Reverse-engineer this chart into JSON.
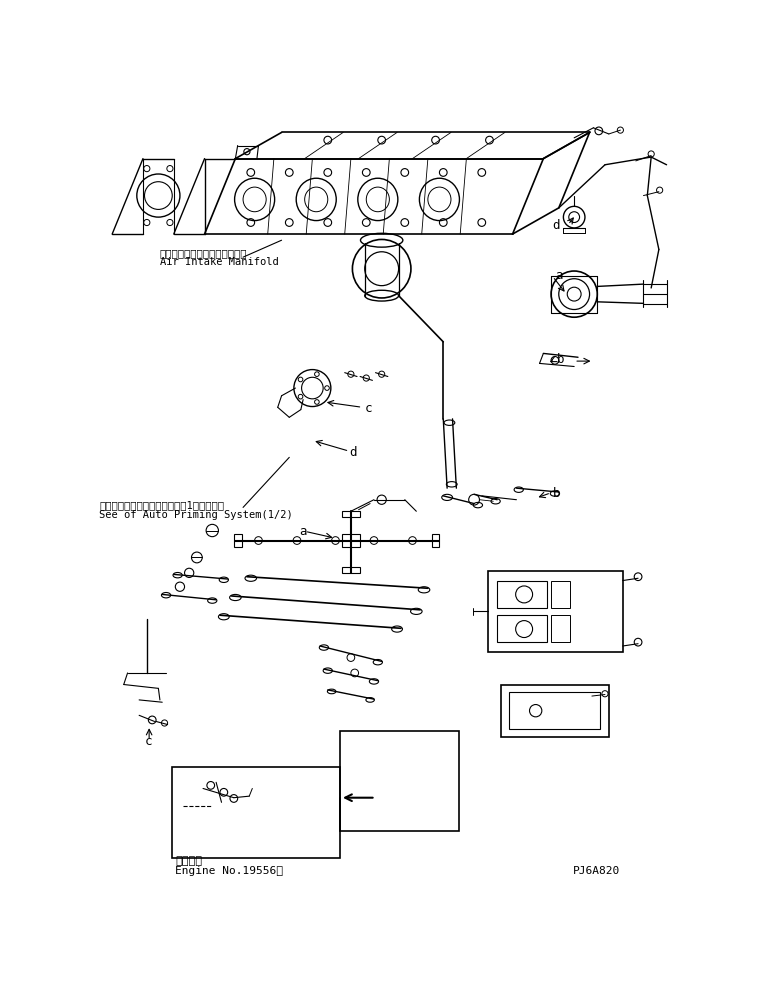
{
  "title": "",
  "background_color": "#ffffff",
  "line_color": "#000000",
  "text_color": "#000000",
  "label_a_top": "a",
  "label_b_top": "b",
  "label_c_top": "c",
  "label_d_top": "d",
  "label_d_mid": "d",
  "label_a_bot": "a",
  "label_b_bot": "b",
  "label_c_bot": "c",
  "japanese_label1": "エアーインテークマニホールド",
  "english_label1": "Air Intake Manifold",
  "japanese_label2": "オートプライミングシステム（1／２）参照",
  "english_label2": "See of Auto Priming System(1/2)",
  "footer_japanese": "適用号機",
  "footer_english": "Engine No.19556～",
  "part_number": "PJ6A820",
  "figsize": [
    7.59,
    9.88
  ],
  "dpi": 100
}
